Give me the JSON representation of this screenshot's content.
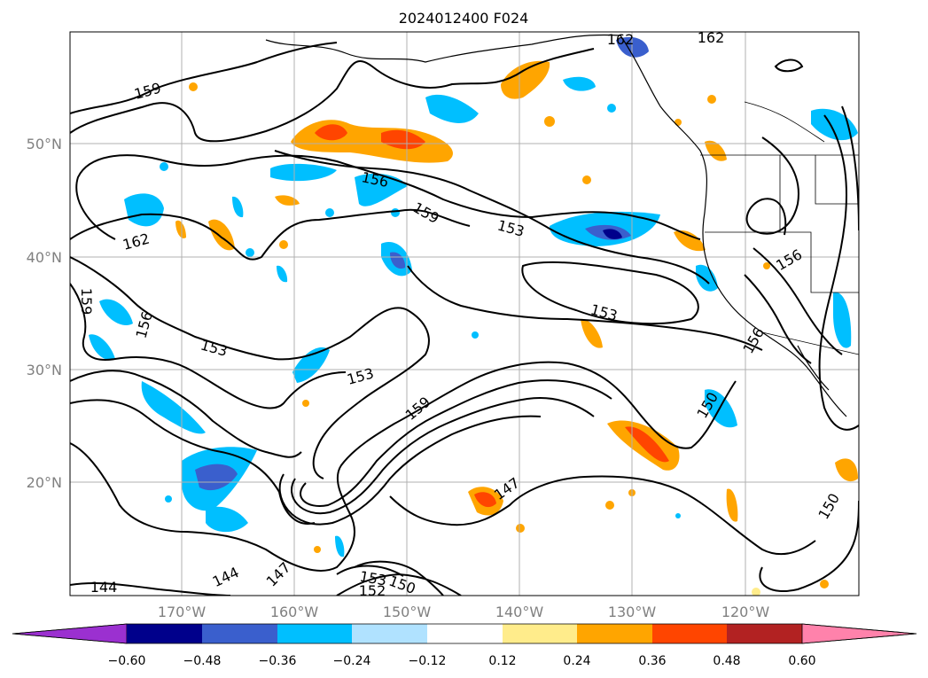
{
  "title": "2024012400 F024",
  "map": {
    "lon_labels": [
      "170°W",
      "160°W",
      "150°W",
      "140°W",
      "130°W",
      "120°W"
    ],
    "lat_labels": [
      "50°N",
      "40°N",
      "30°N",
      "20°N"
    ],
    "contour_labels": [
      "162",
      "162",
      "159",
      "162",
      "156",
      "159",
      "153",
      "156",
      "159",
      "156",
      "153",
      "153",
      "156",
      "153",
      "150",
      "159",
      "147",
      "150",
      "144",
      "144",
      "147",
      "153",
      "150",
      "152"
    ]
  },
  "colorbar": {
    "tick_labels": [
      "−0.60",
      "−0.48",
      "−0.36",
      "−0.24",
      "−0.12",
      "0.12",
      "0.24",
      "0.36",
      "0.48",
      "0.60"
    ],
    "colors": {
      "under": "#9b30d0",
      "bins": [
        "#00008b",
        "#3a5fcd",
        "#00bfff",
        "#b0e2ff",
        "#ffffff",
        "#ffec8b",
        "#ffa500",
        "#ff4500",
        "#b22222",
        "#ff82ab"
      ],
      "over": "#ff82ab"
    }
  }
}
